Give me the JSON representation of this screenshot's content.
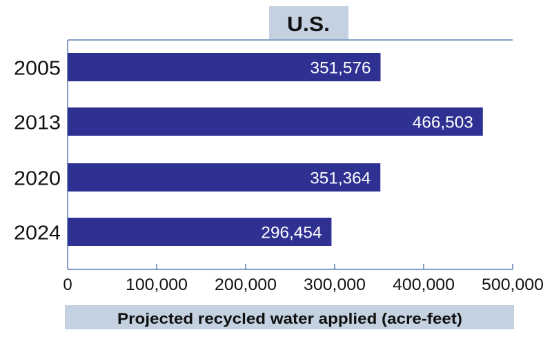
{
  "chart_data": {
    "type": "bar",
    "orientation": "horizontal",
    "title": "U.S.",
    "xlabel": "Projected recycled water applied (acre-feet)",
    "ylabel": "",
    "categories": [
      "2005",
      "2013",
      "2020",
      "2024"
    ],
    "values": [
      351576,
      466503,
      351364,
      296454
    ],
    "value_labels": [
      "351,576",
      "466,503",
      "351,364",
      "296,454"
    ],
    "xlim": [
      0,
      500000
    ],
    "x_ticks": [
      0,
      100000,
      200000,
      300000,
      400000,
      500000
    ],
    "x_tick_labels": [
      "0",
      "100,000",
      "200,000",
      "300,000",
      "400,000",
      "500,000"
    ],
    "grid": false,
    "colors": {
      "bar": "#2e3192",
      "label_box": "#c3d1e0",
      "axis": "#5b7fb0"
    }
  }
}
